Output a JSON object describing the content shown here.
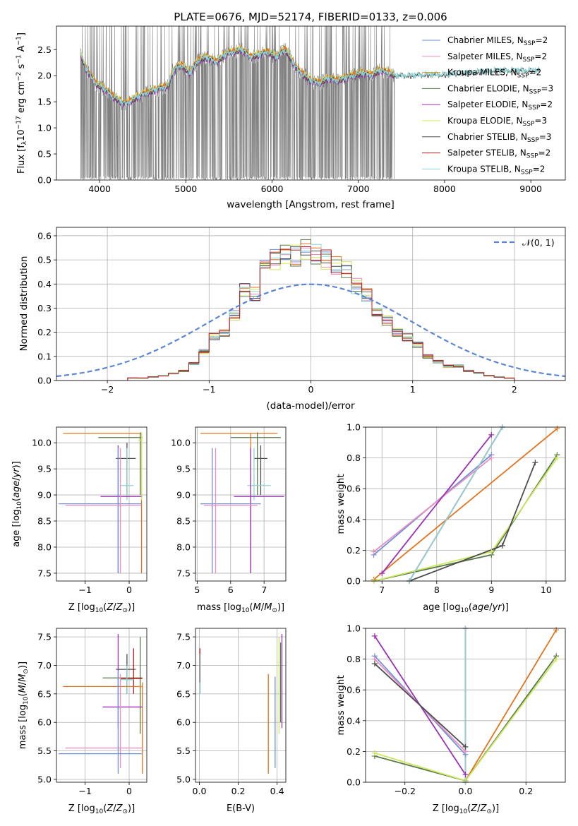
{
  "figure": {
    "title": "PLATE=0676, MJD=52174, FIBERID=0133, z=0.006"
  },
  "colors": {
    "Chabrier MILES": "#6f8fd9",
    "Salpeter MILES": "#e98fbe",
    "Kroupa MILES": "#d4a017",
    "Chabrier ELODIE": "#5a7a4a",
    "Salpeter ELODIE": "#9b30b5",
    "Kroupa ELODIE": "#cde85c",
    "Chabrier STELIB": "#4d4d4d",
    "Salpeter STELIB": "#b21f1f",
    "Kroupa STELIB": "#8fd3d6",
    "orange": "#e3731c",
    "dataGray": "#808080",
    "normal": "#5b86d6"
  },
  "chart_data": [
    {
      "type": "line",
      "id": "spectrum",
      "title": "PLATE=0676, MJD=52174, FIBERID=0133, z=0.006",
      "xlabel": "wavelength [Angstrom, rest frame]",
      "ylabel": "Flux [f",
      "xlim": [
        3500,
        9400
      ],
      "ylim": [
        0,
        2.95
      ],
      "xticks": [
        "4000",
        "5000",
        "6000",
        "7000",
        "8000",
        "9000"
      ],
      "yticks": [
        "0.0",
        "0.5",
        "1.0",
        "1.5",
        "2.0",
        "2.5"
      ],
      "legend": "top-right",
      "series_labels": [
        {
          "name": "Chabrier MILES",
          "text": "Chabrier MILES, N",
          "sub": "SSP",
          "tail": "=2"
        },
        {
          "name": "Salpeter MILES",
          "text": "Salpeter MILES, N",
          "sub": "SSP",
          "tail": "=2"
        },
        {
          "name": "Kroupa MILES",
          "text": "Kroupa MILES, N",
          "sub": "SSP",
          "tail": "=2"
        },
        {
          "name": "Chabrier ELODIE",
          "text": "Chabrier ELODIE, N",
          "sub": "SSP",
          "tail": "=3"
        },
        {
          "name": "Salpeter ELODIE",
          "text": "Salpeter ELODIE, N",
          "sub": "SSP",
          "tail": "=2"
        },
        {
          "name": "Kroupa ELODIE",
          "text": "Kroupa ELODIE, N",
          "sub": "SSP",
          "tail": "=3"
        },
        {
          "name": "Chabrier STELIB",
          "text": "Chabrier STELIB, N",
          "sub": "SSP",
          "tail": "=3"
        },
        {
          "name": "Salpeter STELIB",
          "text": "Salpeter STELIB, N",
          "sub": "SSP",
          "tail": "=2"
        },
        {
          "name": "Kroupa STELIB",
          "text": "Kroupa STELIB, N",
          "sub": "SSP",
          "tail": "=2"
        }
      ],
      "continuum": {
        "x": [
          3780,
          3850,
          3950,
          4050,
          4150,
          4250,
          4300,
          4350,
          4450,
          4600,
          4700,
          4800,
          4850,
          4950,
          5050,
          5150,
          5250,
          5350,
          5450,
          5550,
          5650,
          5750,
          5850,
          5950,
          6050,
          6150,
          6300,
          6450,
          6550,
          6650,
          6750,
          6850,
          6950,
          7050,
          7150,
          7250,
          7350,
          7420
        ],
        "y": [
          2.4,
          2.1,
          1.85,
          1.75,
          1.6,
          1.5,
          1.45,
          1.5,
          1.6,
          1.7,
          1.75,
          1.8,
          2.1,
          2.2,
          2.05,
          2.3,
          2.35,
          2.25,
          2.4,
          2.45,
          2.5,
          2.35,
          2.4,
          2.45,
          2.35,
          2.5,
          2.1,
          1.9,
          1.85,
          1.95,
          1.9,
          1.95,
          2.0,
          2.05,
          2.0,
          2.1,
          2.05,
          2.0
        ]
      },
      "model_tail": {
        "x": [
          7420,
          7600,
          7800,
          8000,
          8200,
          8400,
          8600,
          8800,
          9000,
          9100
        ],
        "y": [
          2.0,
          2.0,
          2.02,
          2.02,
          2.05,
          2.07,
          2.1,
          2.1,
          2.1,
          2.1
        ]
      }
    },
    {
      "type": "bar",
      "id": "residuals",
      "xlabel": "(data-model)/error",
      "ylabel": "Normed distribution",
      "xlim": [
        -2.5,
        2.5
      ],
      "ylim": [
        0,
        0.635
      ],
      "xticks": [
        "−2",
        "−1",
        "0",
        "1",
        "2"
      ],
      "yticks": [
        "0.0",
        "0.1",
        "0.2",
        "0.3",
        "0.4",
        "0.5",
        "0.6"
      ],
      "grid": true,
      "legend_label": "𝒩(0, 1)",
      "bin_edges_start": -2.5,
      "bin_width": 0.1,
      "values": [
        0.0,
        0.0,
        0.0,
        0.0,
        0.0,
        0.0,
        0.0,
        0.01,
        0.01,
        0.015,
        0.02,
        0.03,
        0.04,
        0.07,
        0.12,
        0.18,
        0.2,
        0.27,
        0.37,
        0.36,
        0.5,
        0.5,
        0.53,
        0.52,
        0.55,
        0.52,
        0.5,
        0.48,
        0.46,
        0.39,
        0.35,
        0.28,
        0.25,
        0.2,
        0.18,
        0.15,
        0.1,
        0.08,
        0.06,
        0.06,
        0.04,
        0.03,
        0.02,
        0.015,
        0.01,
        0.0,
        0.0,
        0.0,
        0.0,
        0.0
      ]
    },
    {
      "type": "scatter",
      "id": "age-Z",
      "xlabel": "Z [log",
      "ylabel": "age  [log",
      "xlim": [
        -1.65,
        0.4
      ],
      "ylim": [
        7.35,
        10.3
      ],
      "xticks": [
        "−1",
        "0"
      ],
      "yticks": [
        "7.5",
        "8.0",
        "8.5",
        "9.0",
        "9.5",
        "10.0"
      ]
    },
    {
      "type": "scatter",
      "id": "age-mass",
      "xlabel": "mass [log",
      "ylabel": "",
      "xlim": [
        4.95,
        7.65
      ],
      "ylim": [
        7.35,
        10.3
      ],
      "xticks": [
        "5",
        "6",
        "7"
      ],
      "yticks": [
        "7.5",
        "8.0",
        "8.5",
        "9.0",
        "9.5",
        "10.0"
      ]
    },
    {
      "type": "line",
      "id": "massweight-age",
      "xlabel": "age  [log",
      "ylabel": "mass weight",
      "xlim": [
        6.7,
        10.35
      ],
      "ylim": [
        0,
        1
      ],
      "xticks": [
        "7",
        "8",
        "9",
        "10"
      ],
      "yticks": [
        "0.0",
        "0.2",
        "0.4",
        "0.6",
        "0.8",
        "1.0"
      ],
      "series": [
        {
          "name": "Chabrier MILES",
          "x": [
            6.85,
            9.0
          ],
          "y": [
            0.17,
            0.82
          ]
        },
        {
          "name": "Salpeter MILES",
          "x": [
            6.85,
            9.0
          ],
          "y": [
            0.19,
            0.8
          ]
        },
        {
          "name": "Kroupa MILES",
          "x": [
            6.85,
            10.2
          ],
          "y": [
            0.01,
            0.99
          ]
        },
        {
          "name": "Chabrier ELODIE",
          "x": [
            6.85,
            9.0,
            10.2
          ],
          "y": [
            0.0,
            0.17,
            0.82
          ]
        },
        {
          "name": "Salpeter ELODIE",
          "x": [
            7.0,
            9.0
          ],
          "y": [
            0.05,
            0.95
          ]
        },
        {
          "name": "Kroupa ELODIE",
          "x": [
            6.85,
            9.0,
            10.2
          ],
          "y": [
            0.0,
            0.19,
            0.8
          ]
        },
        {
          "name": "Chabrier STELIB",
          "x": [
            7.5,
            9.2,
            9.8
          ],
          "y": [
            0.0,
            0.23,
            0.77
          ]
        },
        {
          "name": "Salpeter STELIB",
          "x": [
            7.5,
            9.2
          ],
          "y": [
            0.0,
            1.0
          ]
        },
        {
          "name": "Kroupa STELIB",
          "x": [
            7.5,
            9.2
          ],
          "y": [
            0.0,
            1.0
          ]
        }
      ]
    },
    {
      "type": "scatter",
      "id": "mass-Z",
      "xlabel": "Z [log",
      "ylabel": "mass [log",
      "xlim": [
        -1.65,
        0.4
      ],
      "ylim": [
        4.95,
        7.65
      ],
      "xticks": [
        "−1",
        "0"
      ],
      "yticks": [
        "5.0",
        "5.5",
        "6.0",
        "6.5",
        "7.0",
        "7.5"
      ]
    },
    {
      "type": "scatter",
      "id": "mass-ebv",
      "xlabel": "E(B-V)",
      "ylabel": "",
      "xlim": [
        -0.02,
        0.445
      ],
      "ylim": [
        4.95,
        7.65
      ],
      "xticks": [
        "0.0",
        "0.2",
        "0.4"
      ],
      "yticks": [
        "5.0",
        "5.5",
        "6.0",
        "6.5",
        "7.0",
        "7.5"
      ]
    },
    {
      "type": "line",
      "id": "massweight-Z",
      "xlabel": "Z [log",
      "ylabel": "mass weight",
      "xlim": [
        -0.33,
        0.33
      ],
      "ylim": [
        0,
        1
      ],
      "xticks": [
        "−0.2",
        "0.0",
        "0.2"
      ],
      "yticks": [
        "0.0",
        "0.2",
        "0.4",
        "0.6",
        "0.8",
        "1.0"
      ],
      "series": [
        {
          "name": "Chabrier MILES",
          "x": [
            -0.3,
            0.0
          ],
          "y": [
            0.82,
            0.18
          ]
        },
        {
          "name": "Salpeter MILES",
          "x": [
            -0.3,
            0.0
          ],
          "y": [
            0.8,
            0.2
          ]
        },
        {
          "name": "Kroupa MILES",
          "x": [
            0.0,
            0.3
          ],
          "y": [
            0.01,
            0.99
          ]
        },
        {
          "name": "Chabrier ELODIE",
          "x": [
            -0.3,
            0.0,
            0.3
          ],
          "y": [
            0.17,
            0.01,
            0.82
          ]
        },
        {
          "name": "Salpeter ELODIE",
          "x": [
            -0.3,
            0.0
          ],
          "y": [
            0.95,
            0.05
          ]
        },
        {
          "name": "Kroupa ELODIE",
          "x": [
            -0.3,
            0.0,
            0.3
          ],
          "y": [
            0.19,
            0.01,
            0.8
          ]
        },
        {
          "name": "Chabrier STELIB",
          "x": [
            -0.3,
            0.0
          ],
          "y": [
            0.77,
            0.23
          ]
        },
        {
          "name": "Salpeter STELIB",
          "x": [
            0.0,
            0.0
          ],
          "y": [
            0.0,
            1.0
          ]
        },
        {
          "name": "Kroupa STELIB",
          "x": [
            0.0,
            0.0
          ],
          "y": [
            0.0,
            1.0
          ]
        }
      ]
    }
  ],
  "error_points": {
    "age-Z": [
      {
        "c": "orange",
        "x": 0.28,
        "xl": -1.5,
        "xh": 0.28,
        "y": 10.18,
        "yl": 7.5,
        "yh": 10.18
      },
      {
        "c": "Chabrier ELODIE",
        "x": 0.25,
        "xl": -0.7,
        "xh": 0.3,
        "y": 10.1,
        "yl": 9.0,
        "yh": 10.2
      },
      {
        "c": "Kroupa ELODIE",
        "x": 0.28,
        "xl": 0.2,
        "xh": 0.3,
        "y": 10.05,
        "yl": 8.9,
        "yh": 10.2
      },
      {
        "c": "Chabrier STELIB",
        "x": -0.05,
        "xl": -0.3,
        "xh": 0.15,
        "y": 9.7,
        "yl": 9.0,
        "yh": 10.0
      },
      {
        "c": "Kroupa STELIB",
        "x": -0.05,
        "xl": -0.2,
        "xh": 0.1,
        "y": 9.18,
        "yl": 8.9,
        "yh": 9.9
      },
      {
        "c": "Salpeter ELODIE",
        "x": -0.25,
        "xl": -0.65,
        "xh": 0.28,
        "y": 8.97,
        "yl": 7.5,
        "yh": 9.95
      },
      {
        "c": "Chabrier MILES",
        "x": -0.25,
        "xl": -1.6,
        "xh": 0.28,
        "y": 8.83,
        "yl": 7.5,
        "yh": 9.9
      },
      {
        "c": "Salpeter MILES",
        "x": -0.2,
        "xl": -1.45,
        "xh": 0.28,
        "y": 8.8,
        "yl": 7.5,
        "yh": 9.9
      }
    ],
    "age-mass": [
      {
        "c": "orange",
        "x": 6.6,
        "xl": 5.1,
        "xh": 7.4,
        "y": 10.18,
        "yl": 7.5,
        "yh": 10.18
      },
      {
        "c": "Chabrier ELODIE",
        "x": 6.8,
        "xl": 6.0,
        "xh": 7.5,
        "y": 10.1,
        "yl": 9.0,
        "yh": 10.2
      },
      {
        "c": "Chabrier STELIB",
        "x": 6.9,
        "xl": 6.7,
        "xh": 7.1,
        "y": 9.7,
        "yl": 9.0,
        "yh": 9.95
      },
      {
        "c": "Kroupa STELIB",
        "x": 6.7,
        "xl": 6.5,
        "xh": 7.2,
        "y": 9.18,
        "yl": 8.9,
        "yh": 9.9
      },
      {
        "c": "Salpeter ELODIE",
        "x": 6.6,
        "xl": 6.1,
        "xh": 7.6,
        "y": 8.97,
        "yl": 7.5,
        "yh": 9.9
      },
      {
        "c": "Chabrier MILES",
        "x": 5.45,
        "xl": 5.1,
        "xh": 6.9,
        "y": 8.83,
        "yl": 7.5,
        "yh": 9.9
      },
      {
        "c": "Salpeter MILES",
        "x": 5.55,
        "xl": 5.2,
        "xh": 6.8,
        "y": 8.8,
        "yl": 7.5,
        "yh": 9.9
      }
    ],
    "mass-Z": [
      {
        "c": "Chabrier ELODIE",
        "x": 0.25,
        "xl": -0.6,
        "xh": 0.3,
        "y": 6.78,
        "yl": 5.8,
        "yh": 7.5
      },
      {
        "c": "Chabrier STELIB",
        "x": -0.05,
        "xl": -0.3,
        "xh": 0.15,
        "y": 6.93,
        "yl": 6.5,
        "yh": 7.2
      },
      {
        "c": "Salpeter STELIB",
        "x": 0.1,
        "xl": -0.2,
        "xh": 0.3,
        "y": 6.77,
        "yl": 6.5,
        "yh": 7.3
      },
      {
        "c": "Kroupa STELIB",
        "x": -0.05,
        "xl": -0.2,
        "xh": 0.1,
        "y": 6.75,
        "yl": 6.5,
        "yh": 7.0
      },
      {
        "c": "orange",
        "x": 0.3,
        "xl": -1.5,
        "xh": 0.3,
        "y": 6.63,
        "yl": 5.1,
        "yh": 6.7
      },
      {
        "c": "Salpeter ELODIE",
        "x": -0.25,
        "xl": -0.6,
        "xh": 0.3,
        "y": 6.27,
        "yl": 5.9,
        "yh": 7.55
      },
      {
        "c": "Salpeter MILES",
        "x": -0.2,
        "xl": -1.45,
        "xh": 0.3,
        "y": 5.55,
        "yl": 5.2,
        "yh": 6.85
      },
      {
        "c": "Chabrier MILES",
        "x": -0.25,
        "xl": -1.6,
        "xh": 0.3,
        "y": 5.45,
        "yl": 5.1,
        "yh": 6.9
      }
    ],
    "mass-ebv": [
      {
        "c": "Salpeter STELIB",
        "x": 0.003,
        "xl": 0.003,
        "xh": 0.003,
        "y": 7.0,
        "yl": 6.7,
        "yh": 7.3
      },
      {
        "c": "Kroupa STELIB",
        "x": 0.005,
        "xl": 0.005,
        "xh": 0.005,
        "y": 6.8,
        "yl": 6.5,
        "yh": 7.2
      },
      {
        "c": "orange",
        "x": 0.355,
        "xl": 0.355,
        "xh": 0.355,
        "y": 5.9,
        "yl": 5.1,
        "yh": 6.85
      },
      {
        "c": "Chabrier MILES",
        "x": 0.39,
        "xl": 0.39,
        "xh": 0.39,
        "y": 5.9,
        "yl": 5.2,
        "yh": 6.8
      },
      {
        "c": "Kroupa ELODIE",
        "x": 0.41,
        "xl": 0.41,
        "xh": 0.41,
        "y": 6.6,
        "yl": 5.8,
        "yh": 7.5
      },
      {
        "c": "Salpeter ELODIE",
        "x": 0.425,
        "xl": 0.425,
        "xh": 0.425,
        "y": 6.8,
        "yl": 5.9,
        "yh": 7.55
      },
      {
        "c": "Chabrier ELODIE",
        "x": 0.418,
        "xl": 0.418,
        "xh": 0.418,
        "y": 6.7,
        "yl": 6.0,
        "yh": 7.4
      }
    ]
  }
}
